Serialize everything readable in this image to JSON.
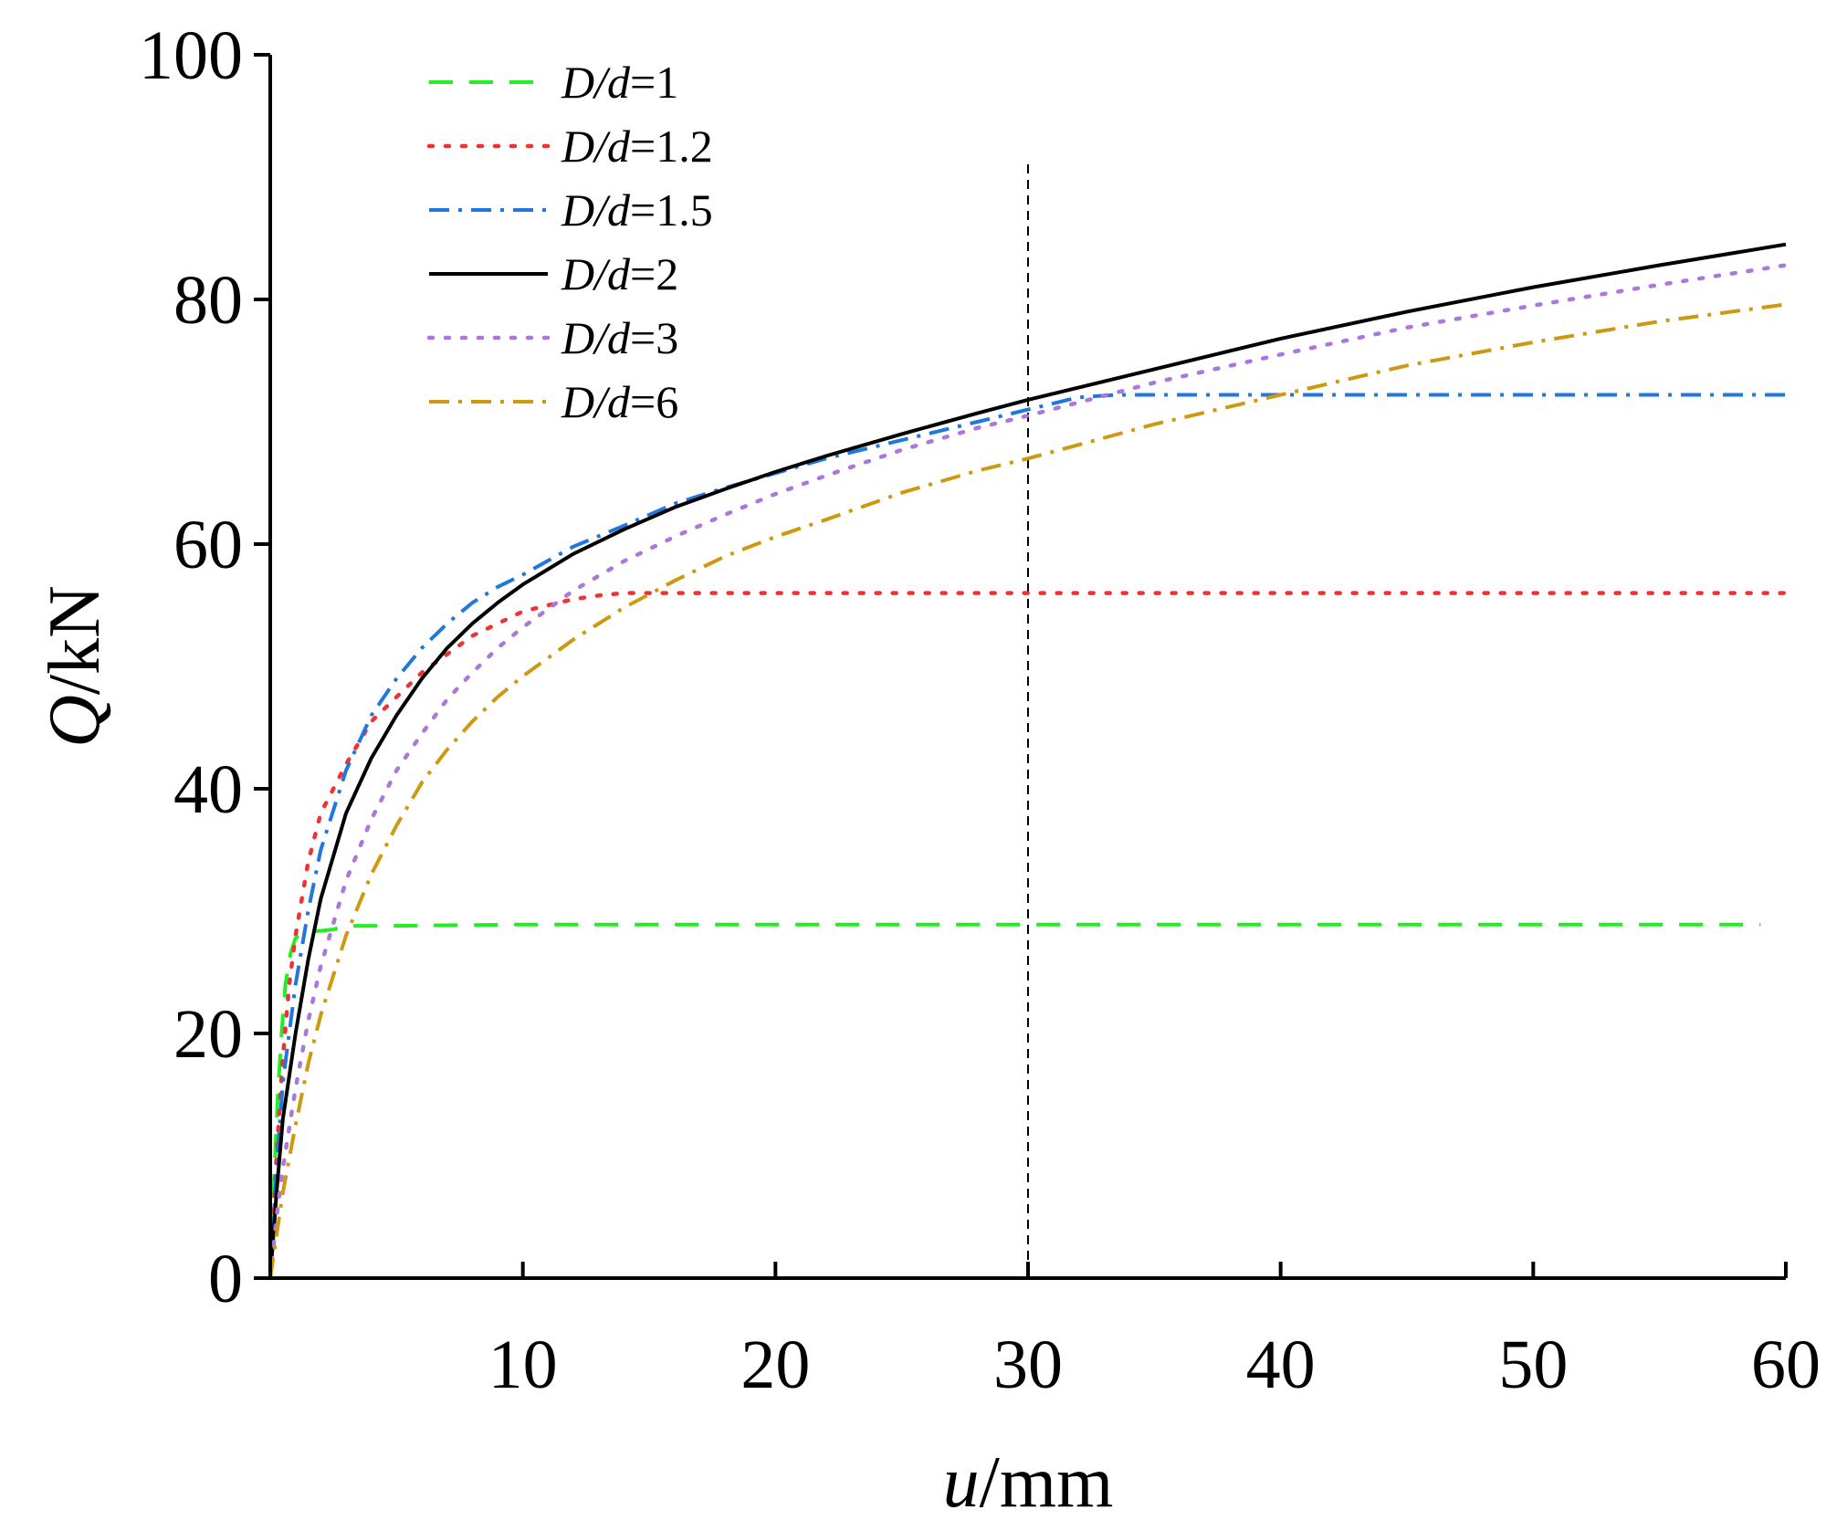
{
  "chart_data": {
    "type": "line",
    "xlabel": {
      "var": "u",
      "unit": "/mm"
    },
    "ylabel": {
      "var": "Q",
      "unit": "/kN"
    },
    "xlim": [
      0,
      60
    ],
    "ylim": [
      0,
      100
    ],
    "x_ticks": [
      10,
      20,
      30,
      40,
      50,
      60
    ],
    "y_ticks": [
      0,
      20,
      40,
      60,
      80,
      100
    ],
    "grid": false,
    "legend_position": "top-left",
    "reference_line": {
      "x": 30,
      "style": "dashed",
      "color": "#000000"
    },
    "series": [
      {
        "name": "D/d=1",
        "var": "D/d",
        "value": "=1",
        "color": "#22ee22",
        "dash": "dash",
        "points": [
          [
            0,
            0
          ],
          [
            0.15,
            8
          ],
          [
            0.3,
            15
          ],
          [
            0.45,
            20
          ],
          [
            0.6,
            24
          ],
          [
            0.8,
            26.5
          ],
          [
            1.0,
            27.8
          ],
          [
            1.5,
            28.3
          ],
          [
            2.5,
            28.5
          ],
          [
            3.0,
            28.8
          ],
          [
            5,
            28.8
          ],
          [
            10,
            28.9
          ],
          [
            20,
            28.9
          ],
          [
            30,
            28.9
          ],
          [
            40,
            28.9
          ],
          [
            50,
            28.9
          ],
          [
            59,
            28.9
          ]
        ]
      },
      {
        "name": "D/d=1.2",
        "var": "D/d",
        "value": "=1.2",
        "color": "#ee3333",
        "dash": "dot",
        "points": [
          [
            0,
            0
          ],
          [
            0.25,
            10
          ],
          [
            0.5,
            18
          ],
          [
            0.75,
            24
          ],
          [
            1.0,
            28
          ],
          [
            1.5,
            34
          ],
          [
            2,
            38
          ],
          [
            3,
            42
          ],
          [
            4,
            45.5
          ],
          [
            5,
            47.5
          ],
          [
            6,
            49.5
          ],
          [
            7,
            51
          ],
          [
            8,
            52.5
          ],
          [
            9,
            53.5
          ],
          [
            10,
            54.5
          ],
          [
            11,
            55
          ],
          [
            12,
            55.5
          ],
          [
            13,
            55.8
          ],
          [
            14,
            56
          ],
          [
            15,
            56
          ],
          [
            20,
            56
          ],
          [
            30,
            56
          ],
          [
            40,
            56
          ],
          [
            50,
            56
          ],
          [
            60,
            56
          ]
        ]
      },
      {
        "name": "D/d=1.5",
        "var": "D/d",
        "value": "=1.5",
        "color": "#2277dd",
        "dash": "dashdot",
        "points": [
          [
            0,
            0
          ],
          [
            0.25,
            9
          ],
          [
            0.5,
            16
          ],
          [
            1,
            24
          ],
          [
            1.5,
            30
          ],
          [
            2,
            35
          ],
          [
            3,
            41.5
          ],
          [
            4,
            46
          ],
          [
            5,
            49
          ],
          [
            6,
            51.5
          ],
          [
            7,
            53.5
          ],
          [
            8,
            55.2
          ],
          [
            9,
            56.5
          ],
          [
            10,
            57.5
          ],
          [
            12,
            59.8
          ],
          [
            14,
            61.5
          ],
          [
            16,
            63.3
          ],
          [
            18,
            64.6
          ],
          [
            20,
            65.8
          ],
          [
            22,
            67
          ],
          [
            25,
            68.5
          ],
          [
            28,
            70
          ],
          [
            30,
            71
          ],
          [
            32,
            72
          ],
          [
            33.5,
            72.2
          ],
          [
            40,
            72.2
          ],
          [
            50,
            72.2
          ],
          [
            60,
            72.2
          ]
        ]
      },
      {
        "name": "D/d=2",
        "var": "D/d",
        "value": "=2",
        "color": "#000000",
        "dash": "solid",
        "points": [
          [
            0,
            0
          ],
          [
            0.25,
            7
          ],
          [
            0.5,
            13
          ],
          [
            1,
            20
          ],
          [
            1.5,
            26
          ],
          [
            2,
            31
          ],
          [
            3,
            38
          ],
          [
            4,
            42.5
          ],
          [
            5,
            46
          ],
          [
            6,
            49
          ],
          [
            7,
            51.5
          ],
          [
            8,
            53.5
          ],
          [
            9,
            55.2
          ],
          [
            10,
            56.7
          ],
          [
            12,
            59.2
          ],
          [
            14,
            61.2
          ],
          [
            16,
            63
          ],
          [
            18,
            64.5
          ],
          [
            20,
            65.9
          ],
          [
            22,
            67.2
          ],
          [
            25,
            69
          ],
          [
            28,
            70.7
          ],
          [
            30,
            71.8
          ],
          [
            35,
            74.3
          ],
          [
            40,
            76.8
          ],
          [
            45,
            79
          ],
          [
            50,
            81
          ],
          [
            55,
            82.8
          ],
          [
            60,
            84.5
          ]
        ]
      },
      {
        "name": "D/d=3",
        "var": "D/d",
        "value": "=3",
        "color": "#aa77dd",
        "dash": "dot",
        "points": [
          [
            0,
            0
          ],
          [
            0.25,
            5
          ],
          [
            0.5,
            9
          ],
          [
            1,
            15.5
          ],
          [
            1.5,
            21
          ],
          [
            2,
            25.5
          ],
          [
            3,
            32.5
          ],
          [
            4,
            37.5
          ],
          [
            5,
            41.5
          ],
          [
            6,
            44.5
          ],
          [
            7,
            47.3
          ],
          [
            8,
            49.5
          ],
          [
            9,
            51.5
          ],
          [
            10,
            53.2
          ],
          [
            12,
            56.2
          ],
          [
            14,
            58.6
          ],
          [
            16,
            60.6
          ],
          [
            18,
            62.4
          ],
          [
            20,
            64.1
          ],
          [
            22,
            65.6
          ],
          [
            25,
            67.7
          ],
          [
            28,
            69.5
          ],
          [
            30,
            70.5
          ],
          [
            35,
            73.2
          ],
          [
            40,
            75.5
          ],
          [
            45,
            77.7
          ],
          [
            50,
            79.5
          ],
          [
            55,
            81.2
          ],
          [
            60,
            82.8
          ]
        ]
      },
      {
        "name": "D/d=6",
        "var": "D/d",
        "value": "=6",
        "color": "#cc9911",
        "dash": "dashdot",
        "points": [
          [
            0,
            0
          ],
          [
            0.25,
            3.5
          ],
          [
            0.5,
            7
          ],
          [
            1,
            12.5
          ],
          [
            1.5,
            17.5
          ],
          [
            2,
            21.5
          ],
          [
            3,
            28
          ],
          [
            4,
            33
          ],
          [
            5,
            37
          ],
          [
            6,
            40.5
          ],
          [
            7,
            43.2
          ],
          [
            8,
            45.5
          ],
          [
            9,
            47.5
          ],
          [
            10,
            49.2
          ],
          [
            12,
            52.2
          ],
          [
            14,
            54.8
          ],
          [
            16,
            57
          ],
          [
            18,
            59
          ],
          [
            20,
            60.6
          ],
          [
            22,
            62
          ],
          [
            25,
            64.2
          ],
          [
            28,
            66
          ],
          [
            30,
            67
          ],
          [
            35,
            69.8
          ],
          [
            40,
            72.2
          ],
          [
            45,
            74.6
          ],
          [
            50,
            76.5
          ],
          [
            55,
            78.2
          ],
          [
            60,
            79.6
          ]
        ]
      }
    ]
  }
}
